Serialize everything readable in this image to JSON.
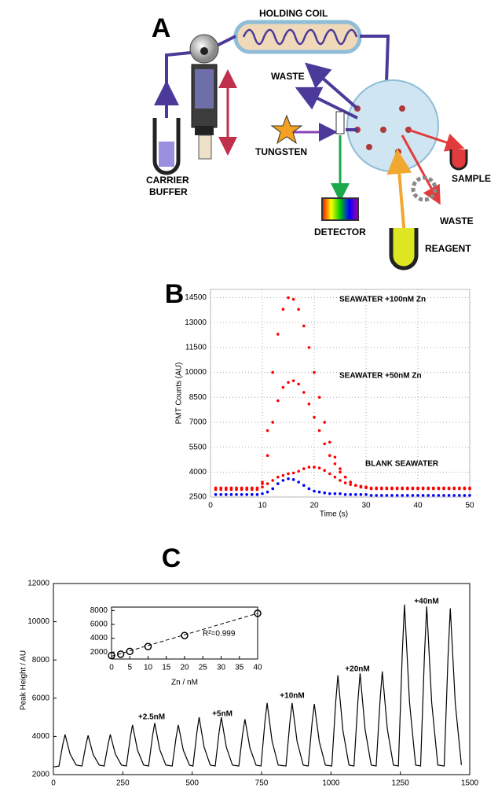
{
  "diagram": {
    "panel_label": "A",
    "labels": [
      "HOLDING COIL",
      "WASTE",
      "TUNGSTEN",
      "CARRIER",
      "BUFFER",
      "DETECTOR",
      "SAMPLE",
      "WASTE",
      "REAGENT"
    ]
  },
  "chart_data": [
    {
      "type": "scatter",
      "title": "B",
      "y_label": "PMT Counts (AU)",
      "x_label": "Time (s)",
      "annotations": [
        "SEAWATER +100nM Zn",
        "SEAWATER +50nM Zn",
        "BLANK SEAWATER"
      ],
      "xlim": [
        0,
        50
      ],
      "ylim": [
        2500,
        15000
      ],
      "xticks": [
        0,
        10,
        20,
        30,
        40,
        50
      ],
      "yticks": [
        2500,
        4000,
        5500,
        7000,
        8500,
        10000,
        11500,
        13000,
        14500
      ],
      "grid": true,
      "x": [
        1,
        2,
        3,
        4,
        5,
        6,
        7,
        8,
        9,
        10,
        11,
        12,
        13,
        14,
        15,
        16,
        17,
        18,
        19,
        20,
        21,
        22,
        23,
        24,
        25,
        26,
        27,
        28,
        29,
        30,
        31,
        32,
        33,
        34,
        35,
        36,
        37,
        38,
        39,
        40,
        41,
        42,
        43,
        44,
        45,
        46,
        47,
        48,
        49,
        50
      ],
      "series": [
        {
          "color": "#ff0000",
          "values": [
            3000,
            3000,
            3000,
            3000,
            3000,
            3000,
            3000,
            3000,
            3000,
            3400,
            6500,
            10000,
            12300,
            13800,
            14500,
            14400,
            13800,
            12800,
            11500,
            10000,
            8500,
            7000,
            5800,
            4900,
            4200,
            3700,
            3400,
            3200,
            3100,
            3100,
            3000,
            3000,
            3000,
            3000,
            3000,
            3000,
            3000,
            3000,
            3000,
            3000,
            3000,
            3000,
            3000,
            3000,
            3000,
            3000,
            3000,
            3000,
            3000,
            3000
          ]
        },
        {
          "color": "#ff0000",
          "values": [
            3050,
            3050,
            3050,
            3050,
            3050,
            3050,
            3050,
            3050,
            3050,
            3300,
            5000,
            7000,
            8300,
            9100,
            9400,
            9500,
            9300,
            8800,
            8100,
            7300,
            6500,
            5700,
            5000,
            4500,
            4000,
            3700,
            3400,
            3200,
            3100,
            3050,
            3000,
            3000,
            3000,
            3000,
            3000,
            3000,
            3000,
            3000,
            3000,
            3000,
            3000,
            3000,
            3000,
            3000,
            3000,
            3000,
            3000,
            3000,
            3000,
            3000
          ]
        },
        {
          "color": "#ff0000",
          "values": [
            2950,
            2950,
            2950,
            2950,
            2950,
            2950,
            2950,
            2950,
            2950,
            3100,
            3300,
            3500,
            3700,
            3800,
            3900,
            3950,
            4050,
            4200,
            4300,
            4300,
            4250,
            4100,
            3900,
            3700,
            3500,
            3350,
            3250,
            3200,
            3150,
            3100,
            3050,
            3050,
            3050,
            3050,
            3050,
            3050,
            3050,
            3050,
            3050,
            3050,
            3050,
            3050,
            3050,
            3050,
            3050,
            3050,
            3050,
            3050,
            3050,
            3050
          ]
        },
        {
          "color": "#0000ff",
          "values": [
            2650,
            2650,
            2650,
            2650,
            2650,
            2650,
            2650,
            2650,
            2650,
            2700,
            2800,
            3000,
            3300,
            3500,
            3600,
            3550,
            3400,
            3200,
            3000,
            2850,
            2800,
            2750,
            2700,
            2700,
            2700,
            2650,
            2650,
            2650,
            2650,
            2650,
            2600,
            2600,
            2600,
            2600,
            2600,
            2600,
            2600,
            2600,
            2600,
            2600,
            2600,
            2600,
            2600,
            2600,
            2600,
            2600,
            2600,
            2600,
            2600,
            2600
          ]
        }
      ]
    },
    {
      "type": "line",
      "title": "C",
      "y_label": "Peak Height / AU",
      "annotations": [
        "+2.5nM",
        "+5nM",
        "+10nM",
        "+20nM",
        "+40nM"
      ],
      "xlim": [
        0,
        1500
      ],
      "ylim": [
        2000,
        12000
      ],
      "xticks": [
        0,
        250,
        500,
        750,
        1000,
        1250,
        1500
      ],
      "yticks": [
        2000,
        4000,
        6000,
        8000,
        10000,
        12000
      ],
      "x": [
        0,
        20,
        34,
        42,
        60,
        82,
        103,
        117,
        125,
        143,
        165,
        183,
        197,
        205,
        223,
        245,
        263,
        277,
        285,
        303,
        325,
        343,
        357,
        365,
        383,
        405,
        428,
        442,
        450,
        468,
        490,
        503,
        517,
        525,
        543,
        565,
        583,
        597,
        605,
        623,
        645,
        668,
        682,
        690,
        708,
        730,
        748,
        762,
        770,
        788,
        810,
        838,
        852,
        860,
        878,
        900,
        918,
        932,
        940,
        958,
        980,
        1003,
        1017,
        1025,
        1043,
        1065,
        1083,
        1097,
        1105,
        1123,
        1145,
        1163,
        1177,
        1185,
        1203,
        1225,
        1243,
        1257,
        1265,
        1283,
        1305,
        1323,
        1337,
        1345,
        1363,
        1385,
        1408,
        1422,
        1430,
        1448,
        1470
      ],
      "series": [
        {
          "color": "#000000",
          "values": [
            2400,
            2450,
            3590,
            4100,
            3080,
            2500,
            2450,
            3555,
            4050,
            3060,
            2500,
            2450,
            3590,
            4100,
            3080,
            2500,
            2450,
            3940,
            4600,
            3280,
            2500,
            2450,
            4010,
            4700,
            3320,
            2500,
            2450,
            3940,
            4600,
            3280,
            2500,
            2450,
            4220,
            5000,
            3440,
            2500,
            2450,
            4220,
            5000,
            3440,
            2500,
            2450,
            4150,
            4900,
            3400,
            2500,
            2450,
            4745,
            5750,
            3740,
            2500,
            2450,
            4745,
            5750,
            3740,
            2500,
            2450,
            4710,
            5700,
            3720,
            2500,
            2450,
            5760,
            7200,
            4320,
            2500,
            2450,
            5830,
            7300,
            4360,
            2500,
            2450,
            5900,
            7400,
            4400,
            2500,
            2450,
            8350,
            10900,
            5800,
            2500,
            2450,
            8280,
            10800,
            5760,
            2500,
            2450,
            8210,
            10700,
            5720,
            2500
          ]
        }
      ]
    },
    {
      "type": "scatter",
      "x_label": "Zn / nM",
      "annotations": [
        "R²=0.999"
      ],
      "xlim": [
        0,
        40
      ],
      "ylim": [
        1000,
        8500
      ],
      "xticks": [
        0,
        5,
        10,
        15,
        20,
        25,
        30,
        35,
        40
      ],
      "yticks": [
        2000,
        4000,
        6000,
        8000
      ],
      "marker": "open-circle",
      "x": [
        0,
        2.5,
        5,
        10,
        20,
        40
      ],
      "series": [
        {
          "color": "#000000",
          "values": [
            1500,
            1700,
            2100,
            2800,
            4400,
            7600
          ]
        }
      ],
      "fit": {
        "x": [
          0,
          40
        ],
        "values": [
          1400,
          7600
        ]
      }
    }
  ]
}
